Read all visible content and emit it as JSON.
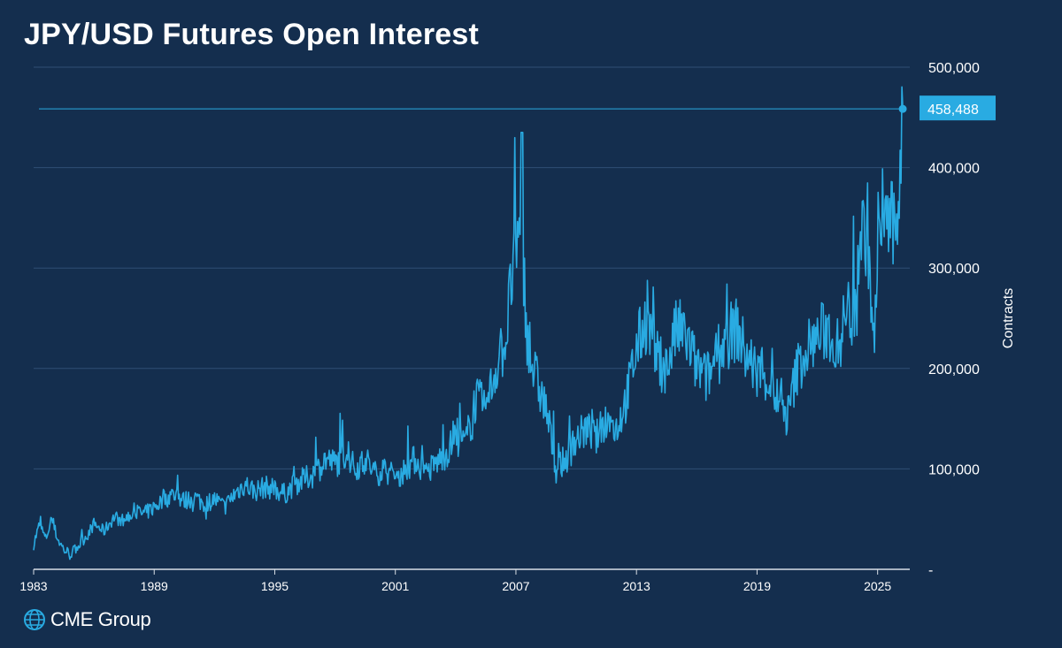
{
  "chart_data": {
    "type": "line",
    "title": "JPY/USD Futures Open Interest",
    "xlabel": "",
    "ylabel": "Contracts",
    "xlim": [
      1983,
      2026.6
    ],
    "ylim": [
      0,
      500000
    ],
    "y_ticks": [
      "-",
      "100,000",
      "200,000",
      "300,000",
      "400,000",
      "500,000"
    ],
    "y_tick_values": [
      0,
      100000,
      200000,
      300000,
      400000,
      500000
    ],
    "x_ticks": [
      "1983",
      "1989",
      "1995",
      "2001",
      "2007",
      "2013",
      "2019",
      "2025"
    ],
    "x_tick_values": [
      1983,
      1989,
      1995,
      2001,
      2007,
      2013,
      2019,
      2025
    ],
    "grid": true,
    "last_value": 458488,
    "last_value_label": "458,488",
    "line_color": "#29abe2",
    "series": [
      {
        "name": "",
        "points": [
          [
            1983.0,
            25000
          ],
          [
            1983.3,
            45000
          ],
          [
            1983.6,
            30000
          ],
          [
            1983.9,
            50000
          ],
          [
            1984.2,
            30000
          ],
          [
            1984.5,
            20000
          ],
          [
            1984.8,
            15000
          ],
          [
            1985.1,
            20000
          ],
          [
            1985.4,
            28000
          ],
          [
            1985.7,
            35000
          ],
          [
            1986.0,
            45000
          ],
          [
            1986.5,
            38000
          ],
          [
            1987.0,
            52000
          ],
          [
            1987.5,
            48000
          ],
          [
            1988.0,
            58000
          ],
          [
            1988.5,
            55000
          ],
          [
            1989.0,
            62000
          ],
          [
            1989.5,
            70000
          ],
          [
            1990.0,
            75000
          ],
          [
            1990.5,
            68000
          ],
          [
            1991.0,
            72000
          ],
          [
            1991.5,
            65000
          ],
          [
            1992.0,
            70000
          ],
          [
            1992.5,
            62000
          ],
          [
            1993.0,
            75000
          ],
          [
            1993.5,
            85000
          ],
          [
            1994.0,
            78000
          ],
          [
            1994.5,
            82000
          ],
          [
            1995.0,
            80000
          ],
          [
            1995.5,
            75000
          ],
          [
            1996.0,
            85000
          ],
          [
            1996.5,
            90000
          ],
          [
            1997.0,
            95000
          ],
          [
            1997.5,
            110000
          ],
          [
            1998.0,
            105000
          ],
          [
            1998.5,
            115000
          ],
          [
            1999.0,
            100000
          ],
          [
            1999.5,
            110000
          ],
          [
            2000.0,
            95000
          ],
          [
            2000.5,
            100000
          ],
          [
            2001.0,
            90000
          ],
          [
            2001.5,
            100000
          ],
          [
            2002.0,
            110000
          ],
          [
            2002.5,
            95000
          ],
          [
            2003.0,
            105000
          ],
          [
            2003.5,
            115000
          ],
          [
            2004.0,
            130000
          ],
          [
            2004.5,
            125000
          ],
          [
            2005.0,
            170000
          ],
          [
            2005.5,
            160000
          ],
          [
            2006.0,
            200000
          ],
          [
            2006.5,
            230000
          ],
          [
            2006.9,
            310000
          ],
          [
            2007.3,
            330000
          ],
          [
            2007.6,
            220000
          ],
          [
            2008.0,
            190000
          ],
          [
            2008.5,
            160000
          ],
          [
            2009.0,
            100000
          ],
          [
            2009.5,
            110000
          ],
          [
            2010.0,
            130000
          ],
          [
            2010.5,
            140000
          ],
          [
            2011.0,
            130000
          ],
          [
            2011.5,
            150000
          ],
          [
            2012.0,
            140000
          ],
          [
            2012.5,
            170000
          ],
          [
            2013.0,
            220000
          ],
          [
            2013.5,
            250000
          ],
          [
            2014.0,
            210000
          ],
          [
            2014.5,
            200000
          ],
          [
            2015.0,
            240000
          ],
          [
            2015.5,
            230000
          ],
          [
            2016.0,
            200000
          ],
          [
            2016.5,
            190000
          ],
          [
            2017.0,
            210000
          ],
          [
            2017.5,
            230000
          ],
          [
            2018.0,
            240000
          ],
          [
            2018.5,
            210000
          ],
          [
            2019.0,
            200000
          ],
          [
            2019.5,
            190000
          ],
          [
            2020.0,
            170000
          ],
          [
            2020.5,
            150000
          ],
          [
            2021.0,
            200000
          ],
          [
            2021.5,
            220000
          ],
          [
            2022.0,
            230000
          ],
          [
            2022.5,
            240000
          ],
          [
            2023.0,
            220000
          ],
          [
            2023.5,
            260000
          ],
          [
            2023.8,
            250000
          ],
          [
            2024.1,
            330000
          ],
          [
            2024.5,
            340000
          ],
          [
            2024.8,
            220000
          ],
          [
            2025.2,
            360000
          ],
          [
            2025.5,
            350000
          ],
          [
            2025.9,
            330000
          ],
          [
            2026.25,
            458488
          ]
        ]
      }
    ]
  },
  "branding": {
    "logo_text": "CME Group"
  }
}
